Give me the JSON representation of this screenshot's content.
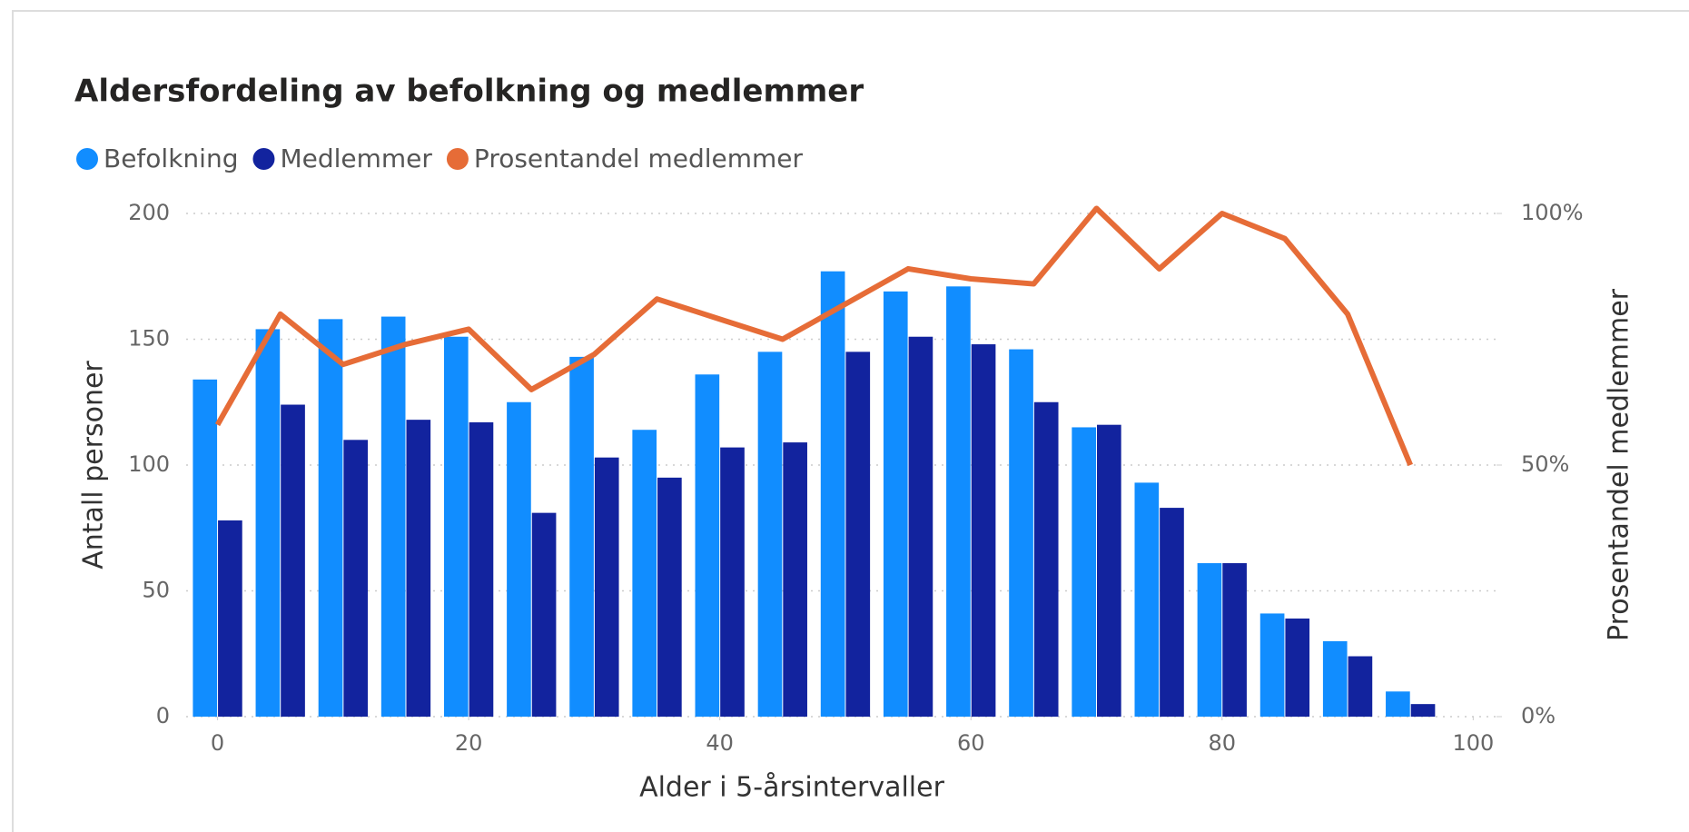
{
  "chart_data": {
    "type": "bar_line",
    "title": "Aldersfordeling av befolkning og medlemmer",
    "x_label": "Alder i 5-årsintervaller",
    "y_label": "Antall personer",
    "y2_label": "Prosentandel medlemmer",
    "x": [
      0,
      5,
      10,
      15,
      20,
      25,
      30,
      35,
      40,
      45,
      50,
      55,
      60,
      65,
      70,
      75,
      80,
      85,
      90,
      95
    ],
    "series": [
      {
        "name": "Befolkning",
        "color": "#118DFF",
        "type": "bar",
        "values": [
          134,
          154,
          158,
          159,
          151,
          125,
          143,
          114,
          136,
          145,
          177,
          169,
          171,
          146,
          115,
          93,
          61,
          41,
          30,
          10
        ]
      },
      {
        "name": "Medlemmer",
        "color": "#12239E",
        "type": "bar",
        "values": [
          78,
          124,
          110,
          118,
          117,
          81,
          103,
          95,
          107,
          109,
          145,
          151,
          148,
          125,
          116,
          83,
          61,
          39,
          24,
          5
        ]
      },
      {
        "name": "Prosentandel medlemmer",
        "color": "#E66C37",
        "type": "line",
        "axis": "y2",
        "values": [
          58,
          80,
          70,
          74,
          77,
          65,
          72,
          83,
          79,
          75,
          82,
          89,
          87,
          86,
          101,
          89,
          100,
          95,
          80,
          50
        ]
      }
    ],
    "xlim": [
      -2.5,
      102
    ],
    "xticks": [
      0,
      20,
      40,
      60,
      80,
      100
    ],
    "ylim": [
      0,
      200
    ],
    "yticks": [
      0,
      50,
      100,
      150,
      200
    ],
    "y2lim": [
      0,
      100
    ],
    "y2ticks": [
      {
        "value": 0,
        "label": "0%"
      },
      {
        "value": 50,
        "label": "50%"
      },
      {
        "value": 100,
        "label": "100%"
      }
    ],
    "grid": true
  }
}
